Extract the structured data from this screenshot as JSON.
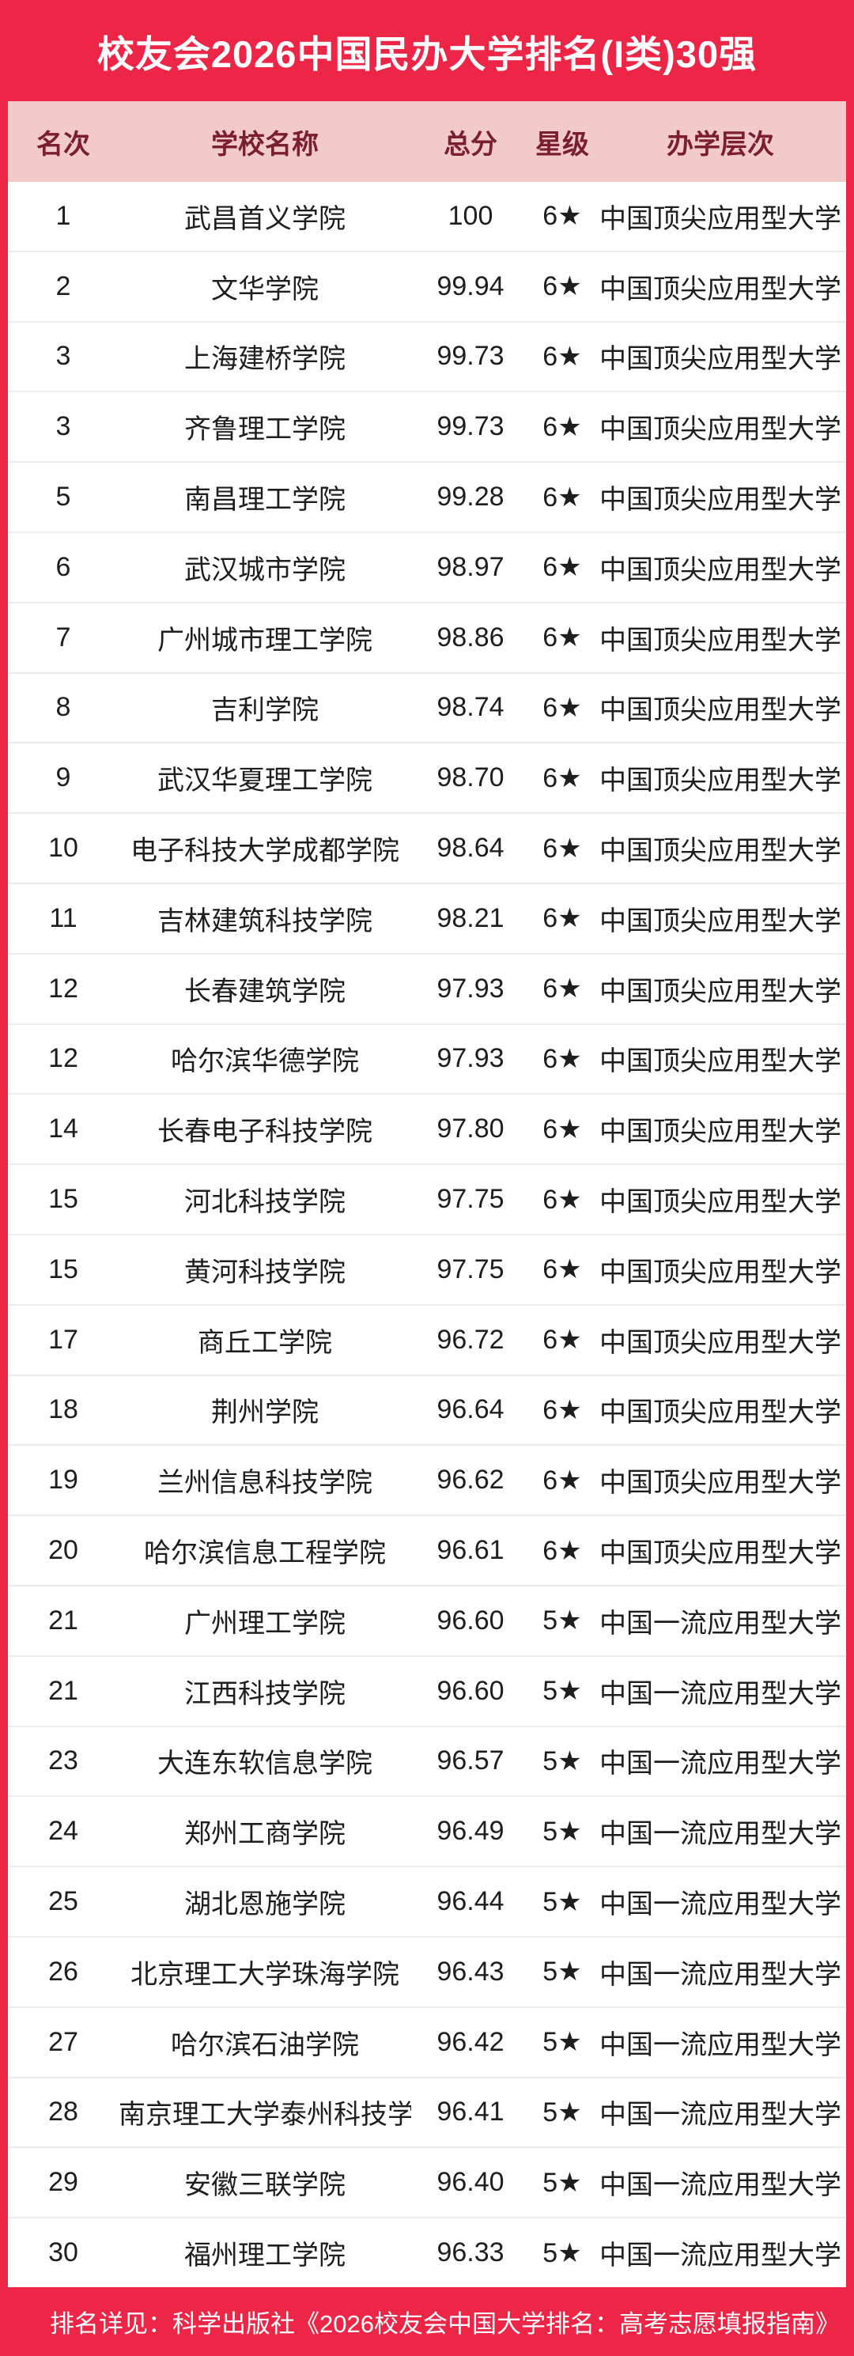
{
  "title": "校友会2026中国民办大学排名(I类)30强",
  "footer": "排名详见：科学出版社《2026校友会中国大学排名：高考志愿填报指南》",
  "colors": {
    "accent_red": "#ed2647",
    "header_pink": "#f3caca",
    "header_text_maroon": "#7b1f2e",
    "row_text": "#1e1e1e",
    "row_separator": "#efecec",
    "title_text": "#ffffff"
  },
  "chart_data": {
    "type": "table",
    "title": "校友会2026中国民办大学排名(I类)30强",
    "columns": [
      "名次",
      "学校名称",
      "总分",
      "星级",
      "办学层次"
    ],
    "rows": [
      {
        "rank": "1",
        "name": "武昌首义学院",
        "score": "100",
        "star": "6★",
        "level": "中国顶尖应用型大学"
      },
      {
        "rank": "2",
        "name": "文华学院",
        "score": "99.94",
        "star": "6★",
        "level": "中国顶尖应用型大学"
      },
      {
        "rank": "3",
        "name": "上海建桥学院",
        "score": "99.73",
        "star": "6★",
        "level": "中国顶尖应用型大学"
      },
      {
        "rank": "3",
        "name": "齐鲁理工学院",
        "score": "99.73",
        "star": "6★",
        "level": "中国顶尖应用型大学"
      },
      {
        "rank": "5",
        "name": "南昌理工学院",
        "score": "99.28",
        "star": "6★",
        "level": "中国顶尖应用型大学"
      },
      {
        "rank": "6",
        "name": "武汉城市学院",
        "score": "98.97",
        "star": "6★",
        "level": "中国顶尖应用型大学"
      },
      {
        "rank": "7",
        "name": "广州城市理工学院",
        "score": "98.86",
        "star": "6★",
        "level": "中国顶尖应用型大学"
      },
      {
        "rank": "8",
        "name": "吉利学院",
        "score": "98.74",
        "star": "6★",
        "level": "中国顶尖应用型大学"
      },
      {
        "rank": "9",
        "name": "武汉华夏理工学院",
        "score": "98.70",
        "star": "6★",
        "level": "中国顶尖应用型大学"
      },
      {
        "rank": "10",
        "name": "电子科技大学成都学院",
        "score": "98.64",
        "star": "6★",
        "level": "中国顶尖应用型大学"
      },
      {
        "rank": "11",
        "name": "吉林建筑科技学院",
        "score": "98.21",
        "star": "6★",
        "level": "中国顶尖应用型大学"
      },
      {
        "rank": "12",
        "name": "长春建筑学院",
        "score": "97.93",
        "star": "6★",
        "level": "中国顶尖应用型大学"
      },
      {
        "rank": "12",
        "name": "哈尔滨华德学院",
        "score": "97.93",
        "star": "6★",
        "level": "中国顶尖应用型大学"
      },
      {
        "rank": "14",
        "name": "长春电子科技学院",
        "score": "97.80",
        "star": "6★",
        "level": "中国顶尖应用型大学"
      },
      {
        "rank": "15",
        "name": "河北科技学院",
        "score": "97.75",
        "star": "6★",
        "level": "中国顶尖应用型大学"
      },
      {
        "rank": "15",
        "name": "黄河科技学院",
        "score": "97.75",
        "star": "6★",
        "level": "中国顶尖应用型大学"
      },
      {
        "rank": "17",
        "name": "商丘工学院",
        "score": "96.72",
        "star": "6★",
        "level": "中国顶尖应用型大学"
      },
      {
        "rank": "18",
        "name": "荆州学院",
        "score": "96.64",
        "star": "6★",
        "level": "中国顶尖应用型大学"
      },
      {
        "rank": "19",
        "name": "兰州信息科技学院",
        "score": "96.62",
        "star": "6★",
        "level": "中国顶尖应用型大学"
      },
      {
        "rank": "20",
        "name": "哈尔滨信息工程学院",
        "score": "96.61",
        "star": "6★",
        "level": "中国顶尖应用型大学"
      },
      {
        "rank": "21",
        "name": "广州理工学院",
        "score": "96.60",
        "star": "5★",
        "level": "中国一流应用型大学"
      },
      {
        "rank": "21",
        "name": "江西科技学院",
        "score": "96.60",
        "star": "5★",
        "level": "中国一流应用型大学"
      },
      {
        "rank": "23",
        "name": "大连东软信息学院",
        "score": "96.57",
        "star": "5★",
        "level": "中国一流应用型大学"
      },
      {
        "rank": "24",
        "name": "郑州工商学院",
        "score": "96.49",
        "star": "5★",
        "level": "中国一流应用型大学"
      },
      {
        "rank": "25",
        "name": "湖北恩施学院",
        "score": "96.44",
        "star": "5★",
        "level": "中国一流应用型大学"
      },
      {
        "rank": "26",
        "name": "北京理工大学珠海学院",
        "score": "96.43",
        "star": "5★",
        "level": "中国一流应用型大学"
      },
      {
        "rank": "27",
        "name": "哈尔滨石油学院",
        "score": "96.42",
        "star": "5★",
        "level": "中国一流应用型大学"
      },
      {
        "rank": "28",
        "name": "南京理工大学泰州科技学院",
        "score": "96.41",
        "star": "5★",
        "level": "中国一流应用型大学"
      },
      {
        "rank": "29",
        "name": "安徽三联学院",
        "score": "96.40",
        "star": "5★",
        "level": "中国一流应用型大学"
      },
      {
        "rank": "30",
        "name": "福州理工学院",
        "score": "96.33",
        "star": "5★",
        "level": "中国一流应用型大学"
      }
    ]
  }
}
